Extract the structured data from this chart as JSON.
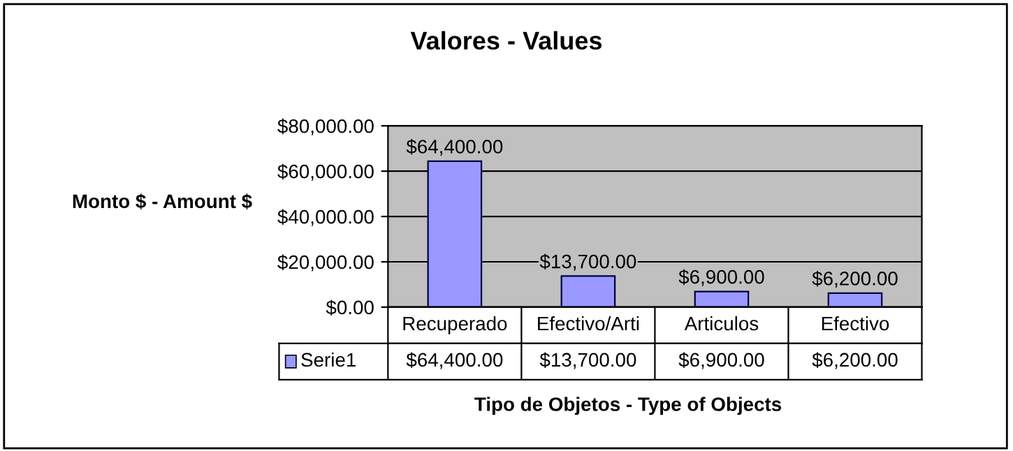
{
  "chart_data": {
    "type": "bar",
    "title": "Valores - Values",
    "ylabel": "Monto $ - Amount $",
    "xlabel": "Tipo de Objetos - Type of Objects",
    "categories": [
      "Recuperado",
      "Efectivo/Arti",
      "Articulos",
      "Efectivo"
    ],
    "series": [
      {
        "name": "Serie1",
        "color": "#9999ff",
        "values": [
          64400,
          13700,
          6900,
          6200
        ],
        "value_labels": [
          "$64,400.00",
          "$13,700.00",
          "$6,900.00",
          "$6,200.00"
        ]
      }
    ],
    "ylim": [
      0,
      80000
    ],
    "yticks": [
      {
        "value": 0,
        "label": "$0.00"
      },
      {
        "value": 20000,
        "label": "$20,000.00"
      },
      {
        "value": 40000,
        "label": "$40,000.00"
      },
      {
        "value": 60000,
        "label": "$60,000.00"
      },
      {
        "value": 80000,
        "label": "$80,000.00"
      }
    ],
    "grid": "y",
    "legend": "bottom"
  }
}
